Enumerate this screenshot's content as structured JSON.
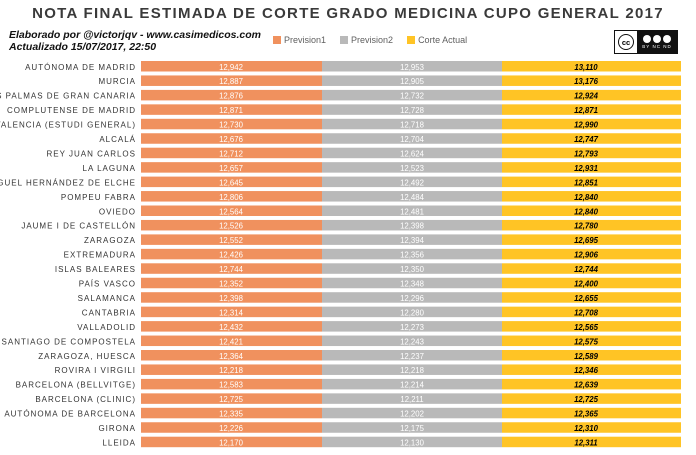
{
  "title": "NOTA FINAL ESTIMADA DE CORTE GRADO MEDICINA CUPO GENERAL 2017",
  "credit_line1": "Elaborado por @victorjqv - www.casimedicos.com",
  "credit_line2": "Actualizado 15/07/2017, 22:50",
  "license_badge": {
    "logo": "cc",
    "text": "BY NC ND",
    "icon": "creative-commons-by-nc-nd-icon"
  },
  "colors": {
    "prevision1": "#f0915e",
    "prevision2": "#b9b9b9",
    "corte_actual": "#ffc425"
  },
  "chart_data": {
    "type": "table",
    "title": "NOTA FINAL ESTIMADA DE CORTE GRADO MEDICINA CUPO GENERAL 2017",
    "legend_position": "top",
    "categories": [
      "AUTÓNOMA DE MADRID",
      "MURCIA",
      "LAS PALMAS DE GRAN CANARIA",
      "COMPLUTENSE DE MADRID",
      "VALENCIA (ESTUDI GENERAL)",
      "ALCALÁ",
      "REY JUAN CARLOS",
      "LA LAGUNA",
      "MIGUEL HERNÁNDEZ DE ELCHE",
      "POMPEU FABRA",
      "OVIEDO",
      "JAUME I DE CASTELLÓN",
      "ZARAGOZA",
      "EXTREMADURA",
      "ISLAS BALEARES",
      "PAÍS VASCO",
      "SALAMANCA",
      "CANTABRIA",
      "VALLADOLID",
      "SANTIAGO DE COMPOSTELA",
      "ZARAGOZA, HUESCA",
      "ROVIRA I VIRGILI",
      "BARCELONA (BELLVITGE)",
      "BARCELONA (CLINIC)",
      "AUTÓNOMA DE BARCELONA",
      "GIRONA",
      "LLEIDA"
    ],
    "series": [
      {
        "name": "Prevision1",
        "values": [
          "12,942",
          "12,887",
          "12,876",
          "12,871",
          "12,730",
          "12,676",
          "12,712",
          "12,657",
          "12,645",
          "12,806",
          "12,564",
          "12,526",
          "12,552",
          "12,426",
          "12,744",
          "12,352",
          "12,398",
          "12,314",
          "12,432",
          "12,421",
          "12,364",
          "12,218",
          "12,583",
          "12,725",
          "12,335",
          "12,226",
          "12,170"
        ]
      },
      {
        "name": "Prevision2",
        "values": [
          "12,953",
          "12,905",
          "12,732",
          "12,728",
          "12,718",
          "12,704",
          "12,624",
          "12,523",
          "12,492",
          "12,484",
          "12,481",
          "12,398",
          "12,394",
          "12,356",
          "12,350",
          "12,348",
          "12,296",
          "12,280",
          "12,273",
          "12,243",
          "12,237",
          "12,218",
          "12,214",
          "12,211",
          "12,202",
          "12,175",
          "12,130"
        ]
      },
      {
        "name": "Corte Actual",
        "values": [
          "13,110",
          "13,176",
          "12,924",
          "12,871",
          "12,990",
          "12,747",
          "12,793",
          "12,931",
          "12,851",
          "12,840",
          "12,840",
          "12,780",
          "12,695",
          "12,906",
          "12,744",
          "12,400",
          "12,655",
          "12,708",
          "12,565",
          "12,575",
          "12,589",
          "12,346",
          "12,639",
          "12,725",
          "12,365",
          "12,310",
          "12,311"
        ]
      }
    ]
  }
}
